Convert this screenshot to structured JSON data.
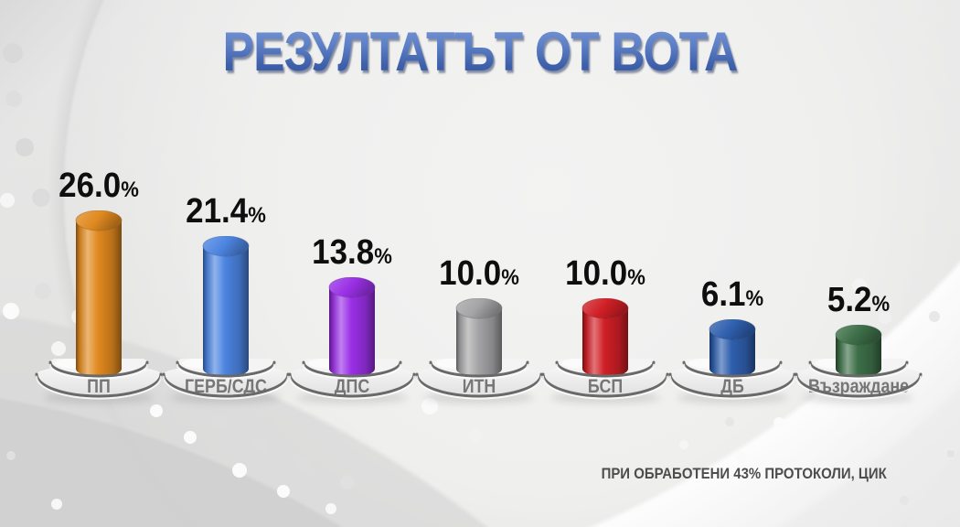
{
  "title": "РЕЗУЛТАТЪТ ОТ ВОТА",
  "footnote": "ПРИ ОБРАБОТЕНИ 43% ПРОТОКОЛИ, ЦИК",
  "chart_data": {
    "type": "bar",
    "style": "3d cylinders on round pedestals, TV broadcast graphic",
    "title": "РЕЗУЛТАТЪТ ОТ ВОТА",
    "categories": [
      "ПП",
      "ГЕРБ/СДС",
      "ДПС",
      "ИТН",
      "БСП",
      "ДБ",
      "Възраждане"
    ],
    "values": [
      26.0,
      21.4,
      13.8,
      10.0,
      10.0,
      6.1,
      5.2
    ],
    "value_labels": [
      "26.0",
      "21.4",
      "13.8",
      "10.0",
      "10.0",
      "6.1",
      "5.2"
    ],
    "unit": "%",
    "bar_colors": [
      "#e0891f",
      "#4c84e0",
      "#9a30e6",
      "#a4a4a6",
      "#d01f26",
      "#2f5fae",
      "#3d6f48"
    ],
    "legend": "none",
    "axes_visible": false,
    "grid": false,
    "value_label_color": "#111111",
    "category_label_color": "#767676",
    "title_color": "#4a6cb3",
    "footnote": "ПРИ ОБРАБОТЕНИ 43% ПРОТОКОЛИ, ЦИК"
  }
}
